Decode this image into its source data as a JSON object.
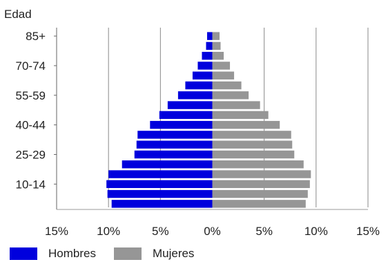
{
  "chart_data": {
    "type": "bar",
    "orientation": "horizontal-diverging",
    "ylabel": "Edad",
    "categories": [
      "85+",
      "80-84",
      "75-79",
      "70-74",
      "65-69",
      "60-64",
      "55-59",
      "50-54",
      "45-49",
      "40-44",
      "35-39",
      "30-34",
      "25-29",
      "20-24",
      "15-19",
      "10-14",
      "5-9",
      "0-4"
    ],
    "y_tick_labels": [
      {
        "category": "85+",
        "label": "85+"
      },
      {
        "category": "70-74",
        "label": "70-74"
      },
      {
        "category": "55-59",
        "label": "55-59"
      },
      {
        "category": "40-44",
        "label": "40-44"
      },
      {
        "category": "25-29",
        "label": "25-29"
      },
      {
        "category": "10-14",
        "label": "10-14"
      }
    ],
    "x_tick_labels": [
      "15%",
      "10%",
      "5%",
      "0%",
      "5%",
      "10%",
      "15%"
    ],
    "xlim": [
      -15,
      15
    ],
    "grid": true,
    "legend_position": "bottom-left",
    "series": [
      {
        "name": "Hombres",
        "color": "#0000dd",
        "values": [
          0.5,
          0.6,
          1.0,
          1.4,
          1.9,
          2.6,
          3.3,
          4.3,
          5.1,
          6.0,
          7.2,
          7.3,
          7.5,
          8.7,
          10.0,
          10.2,
          10.1,
          9.7
        ]
      },
      {
        "name": "Mujeres",
        "color": "#969696",
        "values": [
          0.7,
          0.8,
          1.1,
          1.7,
          2.1,
          2.8,
          3.5,
          4.6,
          5.4,
          6.5,
          7.6,
          7.7,
          7.9,
          8.8,
          9.5,
          9.4,
          9.2,
          9.0
        ]
      }
    ]
  }
}
